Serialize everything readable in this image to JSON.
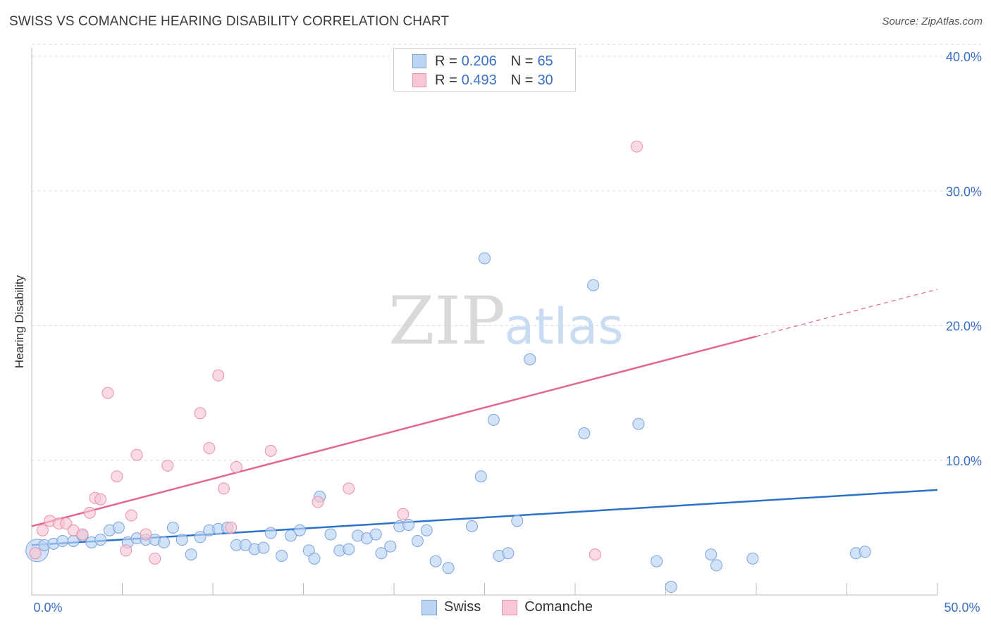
{
  "title": "SWISS VS COMANCHE HEARING DISABILITY CORRELATION CHART",
  "source": "Source: ZipAtlas.com",
  "watermark": {
    "zip": "ZIP",
    "atlas": "atlas"
  },
  "legend": {
    "swiss": {
      "r_label": "R =",
      "r_value": "0.206",
      "n_label": "N =",
      "n_value": "65"
    },
    "comanche": {
      "r_label": "R =",
      "r_value": "0.493",
      "n_label": "N =",
      "n_value": "30"
    }
  },
  "colors": {
    "swiss_fill": "#bcd4f3",
    "swiss_stroke": "#7aa3de",
    "swiss_line": "#2a72c8",
    "comanche_fill": "#f8c6d4",
    "comanche_stroke": "#e891ab",
    "comanche_line": "#e26690",
    "axis_text": "#3a6fc4",
    "grid": "#dddddd"
  },
  "chart_data": {
    "type": "scatter",
    "title": "SWISS VS COMANCHE HEARING DISABILITY CORRELATION CHART",
    "xlabel": "",
    "ylabel": "Hearing Disability",
    "xlim": [
      0,
      50
    ],
    "ylim": [
      0,
      40
    ],
    "x_tick_labels": [
      "0.0%",
      "50.0%"
    ],
    "y_ticks": [
      10,
      20,
      30,
      40
    ],
    "y_tick_labels": [
      "10.0%",
      "20.0%",
      "30.0%",
      "40.0%"
    ],
    "grid": true,
    "series": [
      {
        "name": "Swiss",
        "r": 0.206,
        "n": 65,
        "trend": {
          "x": [
            0,
            50
          ],
          "y": [
            3.7,
            7.8
          ]
        },
        "points": [
          [
            0.3,
            3.3
          ],
          [
            0.7,
            3.7
          ],
          [
            1.2,
            3.8
          ],
          [
            1.7,
            4.0
          ],
          [
            2.3,
            4.0
          ],
          [
            2.8,
            4.4
          ],
          [
            3.3,
            3.9
          ],
          [
            3.8,
            4.1
          ],
          [
            4.3,
            4.8
          ],
          [
            4.8,
            5.0
          ],
          [
            5.3,
            3.9
          ],
          [
            5.8,
            4.2
          ],
          [
            6.3,
            4.1
          ],
          [
            6.8,
            4.1
          ],
          [
            7.3,
            3.9
          ],
          [
            7.8,
            5.0
          ],
          [
            8.3,
            4.1
          ],
          [
            8.8,
            3.0
          ],
          [
            9.3,
            4.3
          ],
          [
            9.8,
            4.8
          ],
          [
            10.3,
            4.9
          ],
          [
            10.8,
            5.0
          ],
          [
            11.3,
            3.7
          ],
          [
            11.8,
            3.7
          ],
          [
            12.3,
            3.4
          ],
          [
            12.8,
            3.5
          ],
          [
            13.2,
            4.6
          ],
          [
            13.8,
            2.9
          ],
          [
            14.3,
            4.4
          ],
          [
            14.8,
            4.8
          ],
          [
            15.3,
            3.3
          ],
          [
            15.6,
            2.7
          ],
          [
            15.9,
            7.3
          ],
          [
            16.5,
            4.5
          ],
          [
            17.0,
            3.3
          ],
          [
            17.5,
            3.4
          ],
          [
            18.0,
            4.4
          ],
          [
            18.5,
            4.2
          ],
          [
            19.0,
            4.5
          ],
          [
            19.3,
            3.1
          ],
          [
            19.8,
            3.6
          ],
          [
            20.3,
            5.1
          ],
          [
            20.8,
            5.2
          ],
          [
            21.3,
            4.0
          ],
          [
            21.8,
            4.8
          ],
          [
            22.3,
            2.5
          ],
          [
            23.0,
            2.0
          ],
          [
            24.3,
            5.1
          ],
          [
            24.8,
            8.8
          ],
          [
            25.0,
            25.0
          ],
          [
            25.5,
            13.0
          ],
          [
            25.8,
            2.9
          ],
          [
            26.3,
            3.1
          ],
          [
            26.8,
            5.5
          ],
          [
            27.5,
            17.5
          ],
          [
            30.5,
            12.0
          ],
          [
            31.0,
            23.0
          ],
          [
            33.5,
            12.7
          ],
          [
            34.5,
            2.5
          ],
          [
            35.3,
            0.6
          ],
          [
            37.5,
            3.0
          ],
          [
            37.8,
            2.2
          ],
          [
            39.8,
            2.7
          ],
          [
            45.5,
            3.1
          ],
          [
            46.0,
            3.2
          ]
        ]
      },
      {
        "name": "Comanche",
        "r": 0.493,
        "n": 30,
        "trend": {
          "x": [
            0,
            40
          ],
          "y": [
            5.1,
            19.2
          ]
        },
        "trend_dashed": {
          "x": [
            40,
            50
          ],
          "y": [
            19.2,
            22.7
          ]
        },
        "points": [
          [
            0.2,
            3.1
          ],
          [
            0.6,
            4.8
          ],
          [
            1.0,
            5.5
          ],
          [
            1.5,
            5.3
          ],
          [
            1.9,
            5.3
          ],
          [
            2.3,
            4.8
          ],
          [
            2.8,
            4.5
          ],
          [
            3.2,
            6.1
          ],
          [
            3.5,
            7.2
          ],
          [
            3.8,
            7.1
          ],
          [
            4.2,
            15.0
          ],
          [
            4.7,
            8.8
          ],
          [
            5.2,
            3.3
          ],
          [
            5.5,
            5.9
          ],
          [
            5.8,
            10.4
          ],
          [
            6.3,
            4.5
          ],
          [
            6.8,
            2.7
          ],
          [
            7.5,
            9.6
          ],
          [
            9.3,
            13.5
          ],
          [
            9.8,
            10.9
          ],
          [
            10.3,
            16.3
          ],
          [
            10.6,
            7.9
          ],
          [
            11.0,
            5.0
          ],
          [
            11.3,
            9.5
          ],
          [
            13.2,
            10.7
          ],
          [
            15.8,
            6.9
          ],
          [
            17.5,
            7.9
          ],
          [
            20.5,
            6.0
          ],
          [
            31.1,
            3.0
          ],
          [
            33.4,
            33.3
          ]
        ]
      }
    ]
  }
}
